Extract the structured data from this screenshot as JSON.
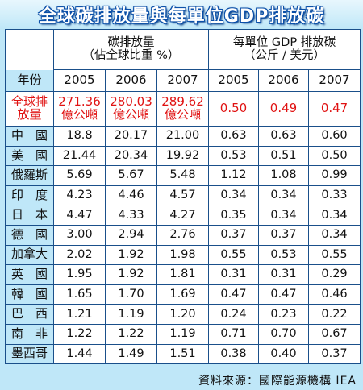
{
  "title": "全球碳排放量與每單位GDP排放碳",
  "header": {
    "left_group_line1": "碳排放量",
    "left_group_line2": "（佔全球比重 %）",
    "right_group_line1": "每單位 GDP 排放碳",
    "right_group_line2": "（公斤 / 美元）",
    "row_label": "年份"
  },
  "source": "資料來源：國際能源機構 IEA",
  "chart_data": {
    "type": "table",
    "title": "全球碳排放量與每單位GDP排放碳",
    "years": [
      "2005",
      "2006",
      "2007",
      "2005",
      "2006",
      "2007"
    ],
    "total_row": {
      "label_line1": "全球排",
      "label_line2": "放量",
      "emissions": [
        {
          "value": "271.36",
          "unit": "億公噸"
        },
        {
          "value": "280.03",
          "unit": "億公噸"
        },
        {
          "value": "289.62",
          "unit": "億公噸"
        }
      ],
      "per_gdp": [
        "0.50",
        "0.49",
        "0.47"
      ]
    },
    "rows": [
      {
        "country": "中　國",
        "emissions": [
          "18.8",
          "20.17",
          "21.00"
        ],
        "per_gdp": [
          "0.63",
          "0.63",
          "0.60"
        ]
      },
      {
        "country": "美　國",
        "emissions": [
          "21.44",
          "20.34",
          "19.92"
        ],
        "per_gdp": [
          "0.53",
          "0.51",
          "0.50"
        ]
      },
      {
        "country": "俄羅斯",
        "emissions": [
          "5.69",
          "5.67",
          "5.48"
        ],
        "per_gdp": [
          "1.12",
          "1.08",
          "0.99"
        ]
      },
      {
        "country": "印　度",
        "emissions": [
          "4.23",
          "4.46",
          "4.57"
        ],
        "per_gdp": [
          "0.34",
          "0.34",
          "0.33"
        ]
      },
      {
        "country": "日　本",
        "emissions": [
          "4.47",
          "4.33",
          "4.27"
        ],
        "per_gdp": [
          "0.35",
          "0.34",
          "0.34"
        ]
      },
      {
        "country": "德　國",
        "emissions": [
          "3.00",
          "2.94",
          "2.76"
        ],
        "per_gdp": [
          "0.37",
          "0.37",
          "0.34"
        ]
      },
      {
        "country": "加拿大",
        "emissions": [
          "2.02",
          "1.92",
          "1.98"
        ],
        "per_gdp": [
          "0.55",
          "0.53",
          "0.55"
        ]
      },
      {
        "country": "英　國",
        "emissions": [
          "1.95",
          "1.92",
          "1.81"
        ],
        "per_gdp": [
          "0.31",
          "0.31",
          "0.29"
        ]
      },
      {
        "country": "韓　國",
        "emissions": [
          "1.65",
          "1.70",
          "1.69"
        ],
        "per_gdp": [
          "0.47",
          "0.47",
          "0.46"
        ]
      },
      {
        "country": "巴　西",
        "emissions": [
          "1.21",
          "1.19",
          "1.20"
        ],
        "per_gdp": [
          "0.24",
          "0.23",
          "0.22"
        ]
      },
      {
        "country": "南　非",
        "emissions": [
          "1.22",
          "1.22",
          "1.19"
        ],
        "per_gdp": [
          "0.71",
          "0.70",
          "0.67"
        ]
      },
      {
        "country": "墨西哥",
        "emissions": [
          "1.44",
          "1.49",
          "1.51"
        ],
        "per_gdp": [
          "0.38",
          "0.40",
          "0.37"
        ]
      }
    ]
  }
}
